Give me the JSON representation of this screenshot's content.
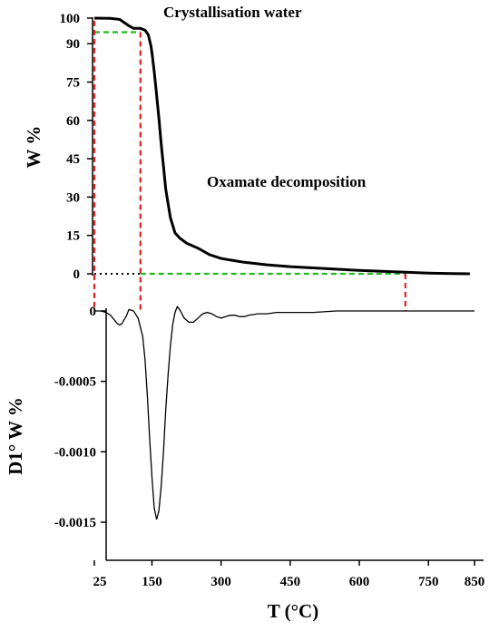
{
  "chart_data": [
    {
      "type": "line",
      "title": "",
      "xlabel": "",
      "ylabel": "W %",
      "xlim": [
        25,
        850
      ],
      "ylim": [
        0,
        100
      ],
      "yticks": [
        "0",
        "15",
        "30",
        "45",
        "60",
        "75",
        "90",
        "100"
      ],
      "grid": false,
      "annotations": [
        {
          "text": "Crystallisation water"
        },
        {
          "text": "Oxamate decomposition"
        }
      ],
      "series": [
        {
          "color": "#000000",
          "x": [
            25,
            60,
            80,
            100,
            110,
            120,
            125,
            135,
            142,
            148,
            151,
            155,
            160,
            165,
            170,
            175,
            180,
            190,
            200,
            210,
            225,
            250,
            275,
            300,
            350,
            400,
            450,
            500,
            550,
            600,
            650,
            700,
            750,
            800,
            840
          ],
          "y": [
            100,
            99.9,
            99.5,
            97,
            96,
            96,
            96,
            95.3,
            93.5,
            89,
            85,
            79,
            70,
            61,
            51,
            42,
            33,
            22,
            16,
            14,
            12,
            10,
            7.5,
            6,
            4.5,
            3.5,
            2.8,
            2.3,
            1.8,
            1.3,
            1.0,
            0.6,
            0.3,
            0.1,
            0
          ]
        }
      ],
      "reference_lines": [
        {
          "style": "dashed",
          "color": "#22bb22",
          "x": [
            25,
            125
          ],
          "y": [
            94.5,
            94.5
          ]
        },
        {
          "style": "dashed",
          "color": "#22bb22",
          "x": [
            125,
            700
          ],
          "y": [
            0,
            0
          ]
        },
        {
          "style": "dotted",
          "color": "#000000",
          "x": [
            25,
            125
          ],
          "y": [
            0,
            0
          ]
        }
      ]
    },
    {
      "type": "line",
      "title": "",
      "xlabel": "T (°C)",
      "ylabel": "D1° W %",
      "xlim": [
        25,
        850
      ],
      "ylim": [
        -0.00205,
        0
      ],
      "xticks": [
        "25",
        "150",
        "300",
        "450",
        "600",
        "750",
        "850"
      ],
      "yticks": [
        "0",
        "-0.0005",
        "-0.0010",
        "-0.0015"
      ],
      "grid": false,
      "series": [
        {
          "color": "#000000",
          "x": [
            25,
            40,
            50,
            60,
            70,
            75,
            80,
            85,
            88,
            92,
            95,
            100,
            110,
            120,
            130,
            135,
            140,
            145,
            150,
            155,
            160,
            165,
            170,
            175,
            180,
            185,
            190,
            195,
            200,
            205,
            210,
            215,
            220,
            230,
            240,
            250,
            260,
            270,
            280,
            290,
            300,
            310,
            320,
            330,
            340,
            350,
            360,
            380,
            400,
            420,
            450,
            500,
            550,
            600,
            650,
            700,
            750,
            800,
            850
          ],
          "y": [
            0,
            0,
            -1e-05,
            -3e-05,
            -7e-05,
            -9e-05,
            -0.0001,
            -9e-05,
            -7e-05,
            -5e-05,
            -3e-05,
            1e-05,
            0,
            -5e-05,
            -0.00018,
            -0.00035,
            -0.0006,
            -0.0009,
            -0.00118,
            -0.0014,
            -0.00148,
            -0.00142,
            -0.00125,
            -0.001,
            -0.0007,
            -0.00045,
            -0.00025,
            -0.0001,
            -1e-05,
            3e-05,
            1e-05,
            -2e-05,
            -5e-05,
            -8e-05,
            -8e-05,
            -5e-05,
            -2e-05,
            -1e-05,
            -2e-05,
            -4e-05,
            -5e-05,
            -4e-05,
            -3e-05,
            -3e-05,
            -4e-05,
            -4e-05,
            -3e-05,
            -2e-05,
            -2e-05,
            -1e-05,
            -1e-05,
            -1e-05,
            0,
            0,
            0,
            0,
            0,
            0,
            0
          ]
        }
      ],
      "reference_lines": [
        {
          "style": "dashed",
          "color": "#dd2222",
          "x": [
            25,
            25
          ],
          "y": [
            100,
            0
          ]
        },
        {
          "style": "dashed",
          "color": "#dd2222",
          "x": [
            125,
            125
          ],
          "y": [
            100,
            0
          ]
        },
        {
          "style": "dashed",
          "color": "#dd2222",
          "x": [
            700,
            700
          ],
          "y": [
            0,
            0
          ]
        }
      ]
    }
  ]
}
